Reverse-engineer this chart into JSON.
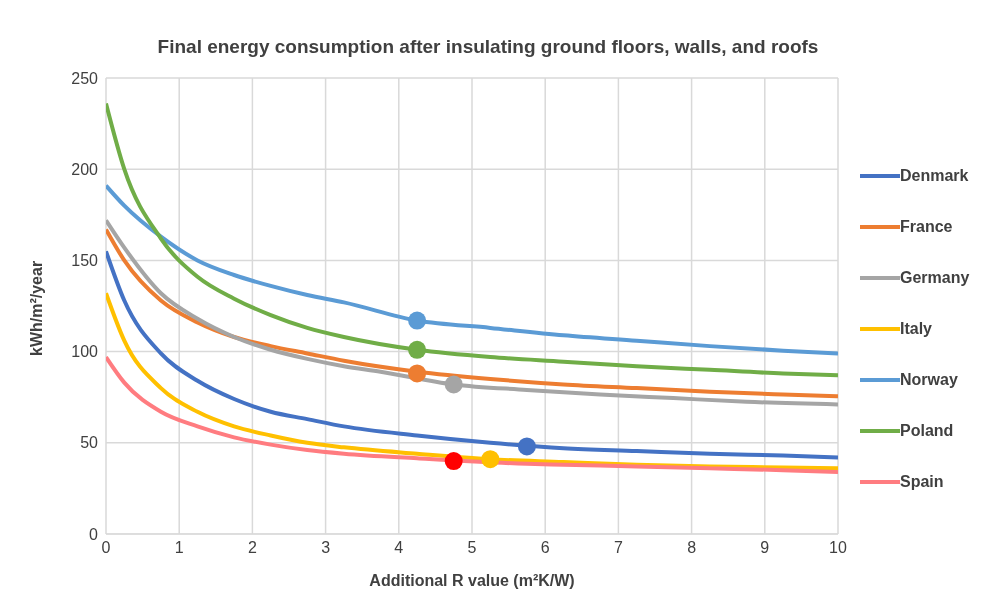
{
  "chart_data": {
    "type": "line",
    "title": "Final energy consumption after insulating ground floors, walls, and roofs",
    "xlabel": "Additional R value (m²K/W)",
    "ylabel": "kWh/m²/year",
    "x": [
      0,
      0.25,
      0.75,
      1.25,
      1.75,
      2.25,
      2.75,
      3.25,
      4.25,
      5.25,
      6.25,
      7.25,
      8.25,
      9.25,
      10
    ],
    "series": [
      {
        "name": "Denmark",
        "color": "#4472c4",
        "values": [
          155,
          128,
          99,
          84,
          74,
          67,
          63,
          59,
          54,
          50,
          47,
          45.5,
          44,
          43,
          42
        ]
      },
      {
        "name": "France",
        "color": "#ed7d31",
        "values": [
          167,
          150,
          128,
          116,
          108,
          103,
          99,
          95,
          89,
          85,
          82,
          80,
          78,
          76.5,
          75.5
        ]
      },
      {
        "name": "Germany",
        "color": "#a5a5a5",
        "x": [
          0,
          0.25,
          0.75,
          1.25,
          1.75,
          2.25,
          2.75,
          3.25,
          3.75,
          4.75,
          5.75,
          6.75,
          7.75,
          8.75,
          10
        ],
        "values": [
          172,
          157,
          132,
          118,
          108,
          101,
          96,
          92,
          89,
          82,
          79,
          76.5,
          74.5,
          72.5,
          71
        ]
      },
      {
        "name": "Italy",
        "color": "#ffc000",
        "values": [
          132,
          106,
          80,
          67,
          59,
          54,
          50,
          47.5,
          44,
          41,
          39.5,
          38,
          37,
          36.5,
          36
        ]
      },
      {
        "name": "Norway",
        "color": "#5b9bd5",
        "values": [
          191,
          180,
          163,
          150,
          142,
          136,
          131,
          127,
          117,
          113,
          109,
          106,
          103,
          100.5,
          99
        ]
      },
      {
        "name": "Poland",
        "color": "#70ad47",
        "values": [
          236,
          200,
          162,
          141,
          129,
          120,
          113,
          108,
          101,
          97,
          94.5,
          92,
          90,
          88,
          87
        ]
      },
      {
        "name": "Spain",
        "color": "#ff7c80",
        "x": [
          0,
          0.25,
          0.75,
          1.25,
          1.75,
          2.25,
          2.75,
          3.25,
          4.25,
          5.75,
          6.25,
          7.25,
          8.25,
          9.25,
          10
        ],
        "values": [
          97,
          83,
          67,
          59,
          53,
          49,
          46,
          44,
          41.5,
          38.5,
          38,
          37,
          36,
          35,
          34
        ]
      },
      {
        "type": "scatter",
        "marker": "circle",
        "x": [
          5.75,
          4.25,
          4.75,
          5.25,
          4.25,
          4.25,
          4.75
        ],
        "values": [
          48,
          88,
          82,
          41,
          117,
          101,
          40
        ],
        "colors": [
          "#4472c4",
          "#ed7d31",
          "#a5a5a5",
          "#ffc000",
          "#5b9bd5",
          "#70ad47",
          "#ff0000"
        ]
      }
    ],
    "xlim": [
      0,
      10
    ],
    "xticks": [
      0,
      1,
      2,
      3,
      4,
      5,
      6,
      7,
      8,
      9,
      10
    ],
    "ylim": [
      0,
      250
    ],
    "yticks": [
      0,
      50,
      100,
      150,
      200,
      250
    ],
    "grid": true,
    "legend": "right",
    "marker": "none",
    "line_style": "solid"
  }
}
